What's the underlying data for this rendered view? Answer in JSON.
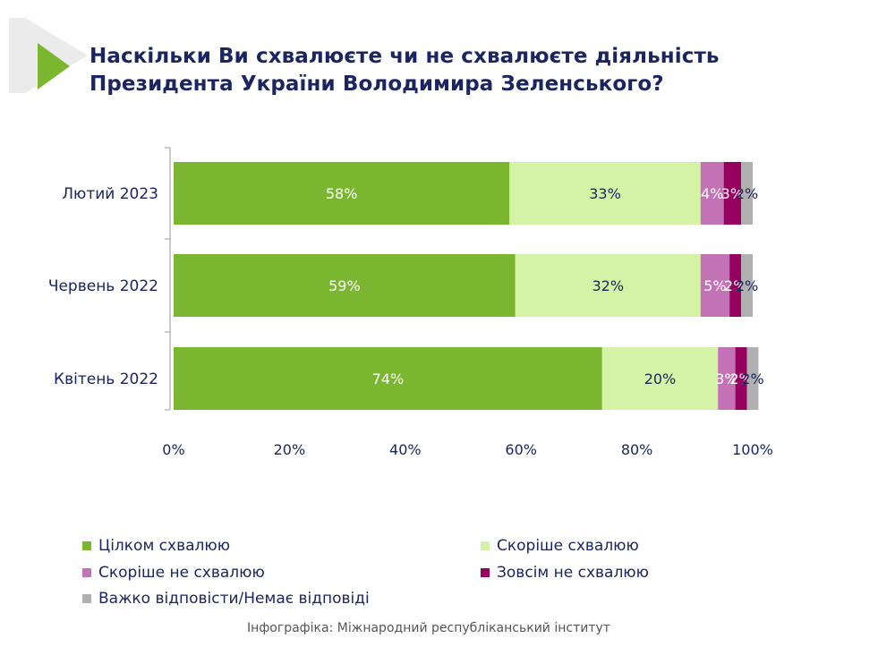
{
  "colors": {
    "title": "#1b2660",
    "fully_approve": "#7ab630",
    "rather_approve": "#d4f3a6",
    "rather_disapprove": "#c472b6",
    "fully_disapprove": "#96005f",
    "hard_to_say": "#b0b0b0",
    "logo_light": "#ebebeb",
    "logo_green": "#7ab630"
  },
  "title": {
    "line1": "Наскільки Ви схвалюєте чи не схвалюєте діяльність",
    "line2": "Президента України Володимира Зеленського?"
  },
  "chart_data": {
    "type": "bar",
    "orientation": "horizontal",
    "stacked": true,
    "categories": [
      "Лютий 2023",
      "Червень 2022",
      "Квітень 2022"
    ],
    "series": [
      {
        "name": "Цілком схвалюю",
        "values": [
          58,
          59,
          74
        ],
        "labels": [
          "58%",
          "59%",
          "74%"
        ]
      },
      {
        "name": "Скоріше схвалюю",
        "values": [
          33,
          32,
          20
        ],
        "labels": [
          "33%",
          "32%",
          "20%"
        ]
      },
      {
        "name": "Скоріше не схвалюю",
        "values": [
          4,
          5,
          3
        ],
        "labels": [
          "4%",
          "5%",
          "3%"
        ]
      },
      {
        "name": "Зовсім не схвалюю",
        "values": [
          3,
          2,
          2
        ],
        "labels": [
          "3%",
          "2%",
          "2%"
        ]
      },
      {
        "name": "Важко відповісти/Немає відповіді",
        "values": [
          2,
          2,
          2
        ],
        "labels": [
          "2%",
          "2%",
          "2%"
        ]
      }
    ],
    "xlim": [
      0,
      100
    ],
    "x_ticks": [
      "0%",
      "20%",
      "40%",
      "60%",
      "80%",
      "100%"
    ],
    "grid": false,
    "legend_position": "bottom"
  },
  "caption": "Інфографіка: Міжнародний республіканський інститут"
}
